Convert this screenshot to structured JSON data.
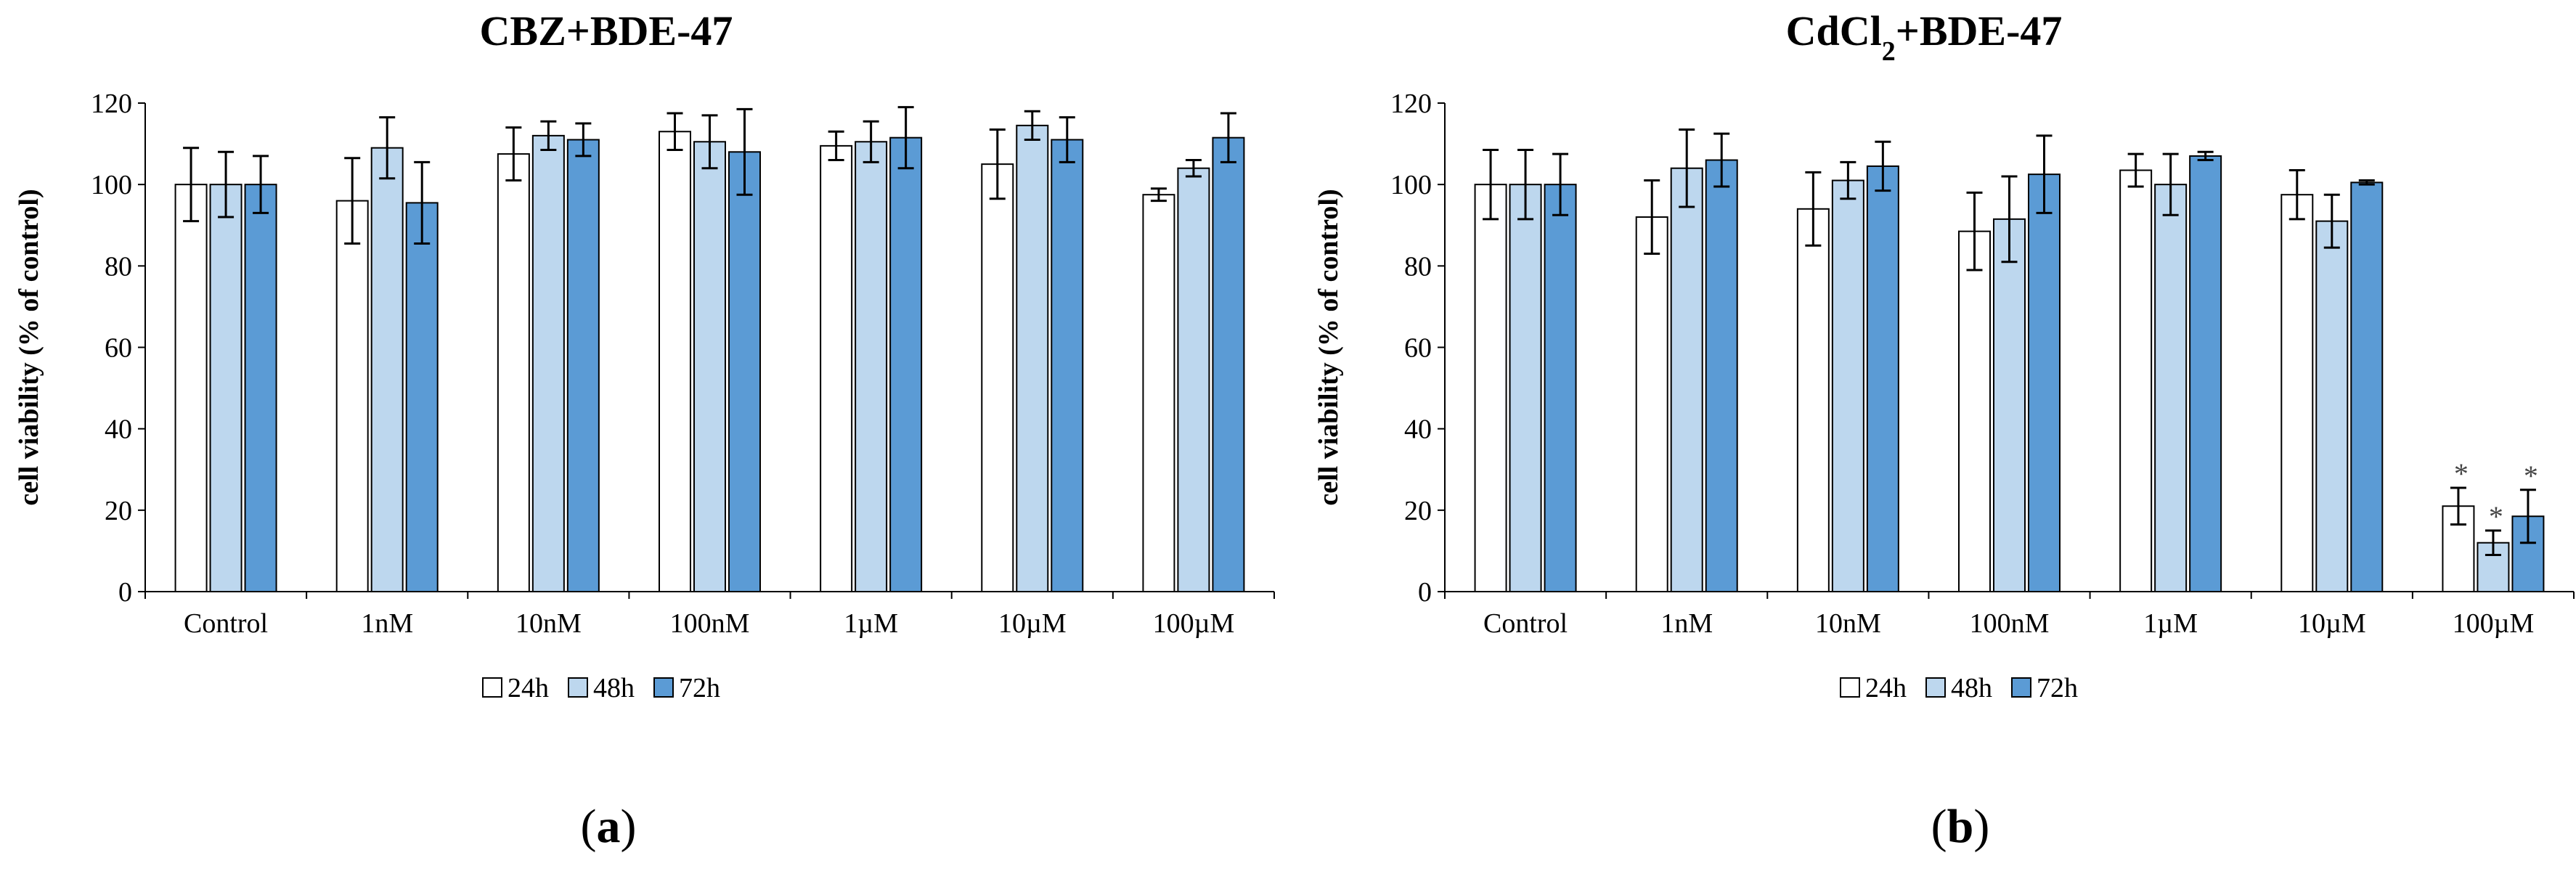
{
  "chart_data": [
    {
      "type": "bar",
      "title": "CBZ+BDE-47",
      "title_sub": "",
      "title_tail": "",
      "panel_label": "a",
      "ylabel": "cell viability  (% of control)",
      "xlabel": "",
      "ylim": [
        0,
        120
      ],
      "yticks": [
        "0",
        "20",
        "40",
        "60",
        "80",
        "100",
        "120"
      ],
      "categories": [
        "Control",
        "1nM",
        "10nM",
        "100nM",
        "1µM",
        "10µM",
        "100µM"
      ],
      "legend_position": "bottom-center",
      "series": [
        {
          "name": "24h",
          "color": "#ffffff",
          "values": [
            100,
            96,
            107.5,
            113,
            109.5,
            105,
            97.5
          ],
          "errors": [
            9,
            10.5,
            6.5,
            4.5,
            3.5,
            8.5,
            1.5
          ],
          "annotations": [
            "",
            "",
            "",
            "",
            "",
            "",
            ""
          ]
        },
        {
          "name": "48h",
          "color": "#bdd7ee",
          "values": [
            100,
            109,
            112,
            110.5,
            110.5,
            114.5,
            104
          ],
          "errors": [
            8,
            7.5,
            3.5,
            6.5,
            5,
            3.5,
            2
          ],
          "annotations": [
            "",
            "",
            "",
            "",
            "",
            "",
            ""
          ]
        },
        {
          "name": "72h",
          "color": "#5b9bd5",
          "values": [
            100,
            95.5,
            111,
            108,
            111.5,
            111,
            111.5
          ],
          "errors": [
            7,
            10,
            4,
            10.5,
            7.5,
            5.5,
            6
          ],
          "annotations": [
            "",
            "",
            "",
            "",
            "",
            "",
            ""
          ]
        }
      ]
    },
    {
      "type": "bar",
      "title": "CdCl",
      "title_sub": "2",
      "title_tail": "+BDE-47",
      "panel_label": "b",
      "ylabel": "cell viability  (% of control)",
      "xlabel": "",
      "ylim": [
        0,
        120
      ],
      "yticks": [
        "0",
        "20",
        "40",
        "60",
        "80",
        "100",
        "120"
      ],
      "categories": [
        "Control",
        "1nM",
        "10nM",
        "100nM",
        "1µM",
        "10µM",
        "100µM"
      ],
      "legend_position": "bottom-center",
      "series": [
        {
          "name": "24h",
          "color": "#ffffff",
          "values": [
            100,
            92,
            94,
            88.5,
            103.5,
            97.5,
            21
          ],
          "errors": [
            8.5,
            9,
            9,
            9.5,
            4,
            6,
            4.5
          ],
          "annotations": [
            "",
            "",
            "",
            "",
            "",
            "",
            "*"
          ]
        },
        {
          "name": "48h",
          "color": "#bdd7ee",
          "values": [
            100,
            104,
            101,
            91.5,
            100,
            91,
            12
          ],
          "errors": [
            8.5,
            9.5,
            4.5,
            10.5,
            7.5,
            6.5,
            3
          ],
          "annotations": [
            "",
            "",
            "",
            "",
            "",
            "",
            "*"
          ]
        },
        {
          "name": "72h",
          "color": "#5b9bd5",
          "values": [
            100,
            106,
            104.5,
            102.5,
            107,
            100.5,
            18.5
          ],
          "errors": [
            7.5,
            6.5,
            6,
            9.5,
            1,
            0.5,
            6.5
          ],
          "annotations": [
            "",
            "",
            "",
            "",
            "",
            "",
            "*"
          ]
        }
      ]
    }
  ]
}
